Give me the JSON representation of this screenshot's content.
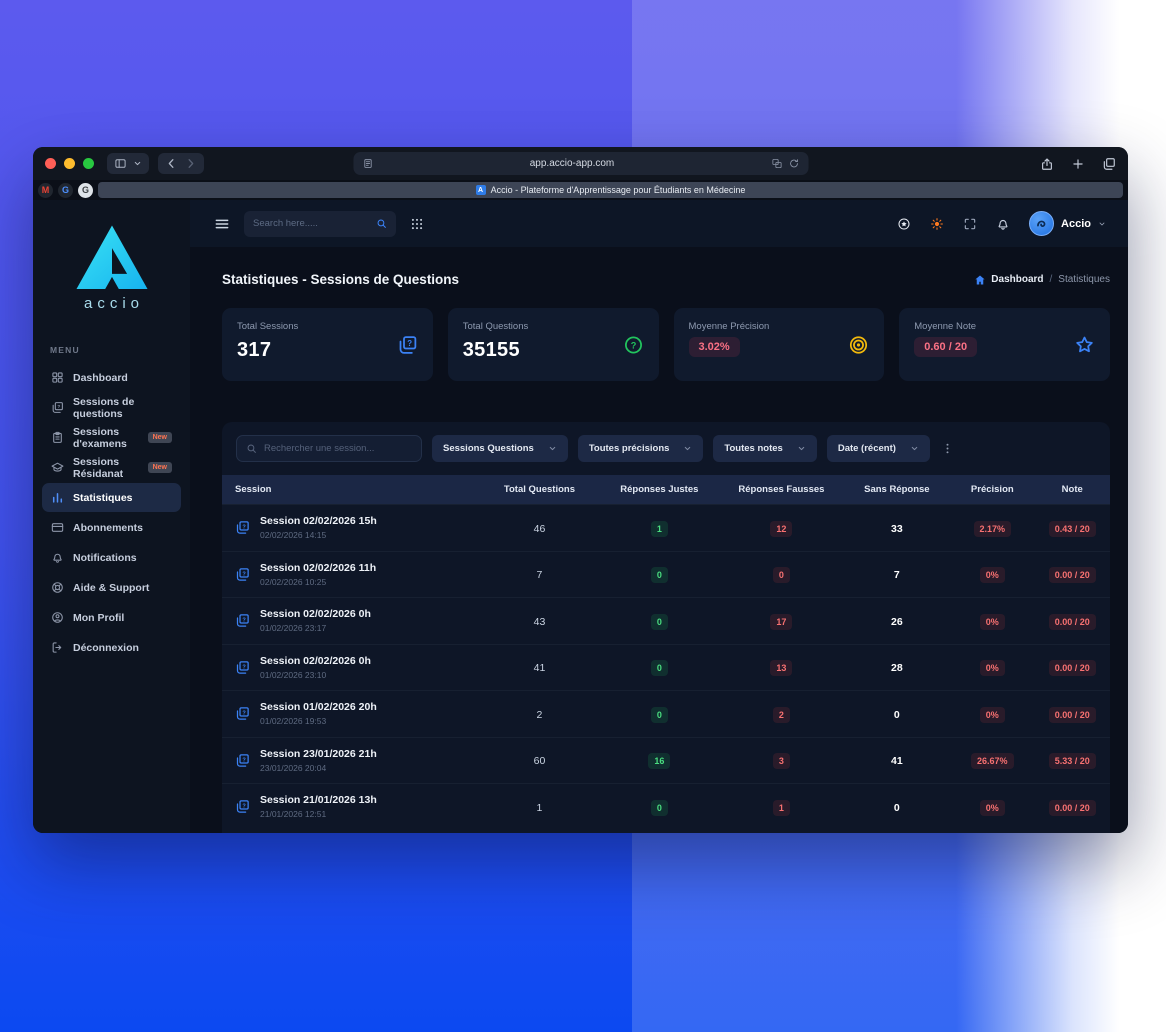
{
  "colors": {
    "accent_blue": "#3b82f6",
    "brand_cyan": "#2fd4ee",
    "green": "#4ade80",
    "red": "#f87171",
    "badge_red_text": "#fb7185",
    "sun_orange": "#ff7a1f",
    "target_yellow": "#f2b90c"
  },
  "browser": {
    "url": "app.accio-app.com",
    "tab_title": "Accio - Plateforme d'Apprentissage pour Étudiants en Médecine",
    "tab_favicon_letter": "A",
    "pinned_tabs": [
      {
        "label": "M",
        "color": "#ea4335",
        "bg": "#20262f"
      },
      {
        "label": "G",
        "color": "#4d90fe",
        "bg": "#20262f"
      },
      {
        "label": "G",
        "color": "#3c4043",
        "bg": "#dfe3e8"
      }
    ]
  },
  "appbar": {
    "search_placeholder": "Search here.....",
    "user_name": "Accio",
    "icons": [
      {
        "name": "star-circle-icon",
        "color": "#e8ecf3"
      },
      {
        "name": "sun-icon",
        "color": "#ff7a1f"
      },
      {
        "name": "fullscreen-icon",
        "color": "#9aa4b8"
      },
      {
        "name": "bell-icon",
        "color": "#c6cedd"
      }
    ]
  },
  "sidebar": {
    "brand": "accio",
    "menu_label": "MENU",
    "items": [
      {
        "id": "dashboard",
        "label": "Dashboard",
        "icon": "dashboard-icon"
      },
      {
        "id": "sessions-questions",
        "label": "Sessions de questions",
        "icon": "copy-question-icon"
      },
      {
        "id": "sessions-examens",
        "label": "Sessions d'examens",
        "icon": "clipboard-icon",
        "badge": "New"
      },
      {
        "id": "sessions-residanat",
        "label": "Sessions Résidanat",
        "icon": "graduation-icon",
        "badge": "New"
      },
      {
        "id": "statistiques",
        "label": "Statistiques",
        "icon": "stats-icon",
        "active": true
      },
      {
        "id": "abonnements",
        "label": "Abonnements",
        "icon": "credit-card-icon"
      },
      {
        "id": "notifications",
        "label": "Notifications",
        "icon": "bell-icon"
      },
      {
        "id": "aide-support",
        "label": "Aide & Support",
        "icon": "support-icon"
      },
      {
        "id": "mon-profil",
        "label": "Mon Profil",
        "icon": "profile-icon"
      },
      {
        "id": "deconnexion",
        "label": "Déconnexion",
        "icon": "logout-icon"
      }
    ]
  },
  "page": {
    "title": "Statistiques - Sessions de Questions",
    "breadcrumb": {
      "home_label": "Dashboard",
      "separator": "/",
      "current": "Statistiques"
    }
  },
  "stats_cards": [
    {
      "id": "total-sessions",
      "label": "Total Sessions",
      "value": "317",
      "style": "plain",
      "icon": "copy-question-icon",
      "icon_color": "#3b82f6"
    },
    {
      "id": "total-questions",
      "label": "Total Questions",
      "value": "35155",
      "style": "plain",
      "icon": "circle-question-icon",
      "icon_color": "#22c55e"
    },
    {
      "id": "moyenne-precision",
      "label": "Moyenne Précision",
      "value": "3.02%",
      "style": "badge",
      "icon": "target-icon",
      "icon_color": "#f2b90c"
    },
    {
      "id": "moyenne-note",
      "label": "Moyenne Note",
      "value": "0.60 / 20",
      "style": "badge",
      "icon": "star-icon",
      "icon_color": "#3b82f6"
    }
  ],
  "filters": {
    "search_placeholder": "Rechercher une session...",
    "dropdowns": [
      {
        "id": "type",
        "value": "Sessions Questions"
      },
      {
        "id": "precision",
        "value": "Toutes précisions"
      },
      {
        "id": "notes",
        "value": "Toutes notes"
      },
      {
        "id": "date",
        "value": "Date (récent)"
      }
    ]
  },
  "table": {
    "columns": [
      "Session",
      "Total Questions",
      "Réponses Justes",
      "Réponses Fausses",
      "Sans Réponse",
      "Précision",
      "Note"
    ],
    "rows": [
      {
        "name": "Session 02/02/2026 15h",
        "date": "02/02/2026 14:15",
        "total": "46",
        "justes": "1",
        "fausses": "12",
        "sans": "33",
        "precision": "2.17%",
        "note": "0.43 / 20"
      },
      {
        "name": "Session 02/02/2026 11h",
        "date": "02/02/2026 10:25",
        "total": "7",
        "justes": "0",
        "fausses": "0",
        "sans": "7",
        "precision": "0%",
        "note": "0.00 / 20"
      },
      {
        "name": "Session 02/02/2026 0h",
        "date": "01/02/2026 23:17",
        "total": "43",
        "justes": "0",
        "fausses": "17",
        "sans": "26",
        "precision": "0%",
        "note": "0.00 / 20"
      },
      {
        "name": "Session 02/02/2026 0h",
        "date": "01/02/2026 23:10",
        "total": "41",
        "justes": "0",
        "fausses": "13",
        "sans": "28",
        "precision": "0%",
        "note": "0.00 / 20"
      },
      {
        "name": "Session 01/02/2026 20h",
        "date": "01/02/2026 19:53",
        "total": "2",
        "justes": "0",
        "fausses": "2",
        "sans": "0",
        "precision": "0%",
        "note": "0.00 / 20"
      },
      {
        "name": "Session 23/01/2026 21h",
        "date": "23/01/2026 20:04",
        "total": "60",
        "justes": "16",
        "fausses": "3",
        "sans": "41",
        "precision": "26.67%",
        "note": "5.33 / 20"
      },
      {
        "name": "Session 21/01/2026 13h",
        "date": "21/01/2026 12:51",
        "total": "1",
        "justes": "0",
        "fausses": "1",
        "sans": "0",
        "precision": "0%",
        "note": "0.00 / 20"
      }
    ]
  }
}
